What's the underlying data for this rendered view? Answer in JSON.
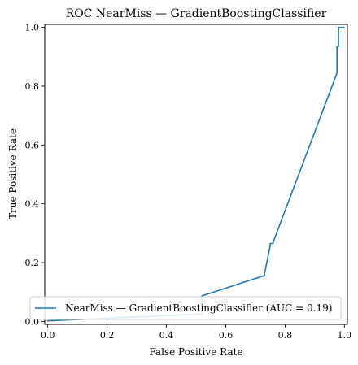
{
  "chart_data": {
    "type": "line",
    "title": "ROC NearMiss — GradientBoostingClassifier",
    "xlabel": "False Positive Rate",
    "ylabel": "True Positive Rate",
    "xlim": [
      -0.01,
      1.01
    ],
    "ylim": [
      -0.01,
      1.01
    ],
    "xticks": [
      0.0,
      0.2,
      0.4,
      0.6,
      0.8,
      1.0
    ],
    "yticks": [
      0.0,
      0.2,
      0.4,
      0.6,
      0.8,
      1.0
    ],
    "x_tick_labels": [
      "0.0",
      "0.2",
      "0.4",
      "0.6",
      "0.8",
      "1.0"
    ],
    "y_tick_labels": [
      "0.0",
      "0.2",
      "0.4",
      "0.6",
      "0.8",
      "1.0"
    ],
    "grid": false,
    "legend_position": "lower-right",
    "series": [
      {
        "name": "NearMiss — GradientBoostingClassifier (AUC = 0.19)",
        "color": "#1f77b4",
        "x": [
          0.0,
          0.0,
          0.0,
          0.52,
          0.52,
          0.73,
          0.73,
          0.75,
          0.75,
          0.76,
          0.76,
          0.975,
          0.975,
          0.98,
          0.98,
          1.0
        ],
        "y": [
          0.0,
          0.001,
          0.002,
          0.025,
          0.087,
          0.156,
          0.157,
          0.26,
          0.265,
          0.265,
          0.27,
          0.845,
          0.935,
          0.935,
          1.0,
          1.0
        ]
      }
    ]
  }
}
